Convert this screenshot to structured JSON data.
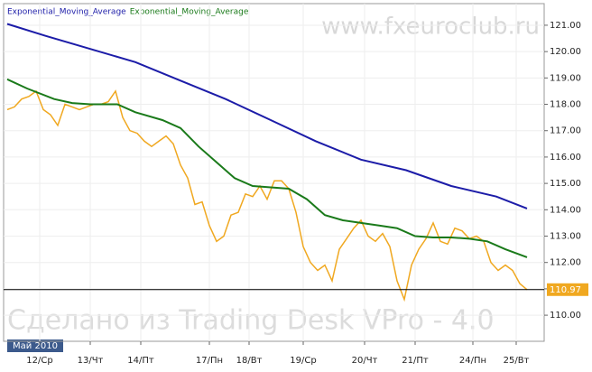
{
  "chart_data": {
    "type": "line",
    "watermark": "www.fxeuroclub.ru",
    "footer_watermark": "Сделано из Trading Desk VPro - 4.0",
    "period_label": "Май 2010",
    "last_price": 110.97,
    "xlim": [
      -1,
      148.75
    ],
    "xticks": [
      {
        "value": 9,
        "label": "12/Ср"
      },
      {
        "value": 23,
        "label": "13/Чт"
      },
      {
        "value": 37,
        "label": "14/Пт"
      },
      {
        "value": 56,
        "label": "17/Пн"
      },
      {
        "value": 67,
        "label": "18/Вт"
      },
      {
        "value": 82,
        "label": "19/Ср"
      },
      {
        "value": 99,
        "label": "20/Чт"
      },
      {
        "value": 113,
        "label": "21/Пт"
      },
      {
        "value": 129,
        "label": "24/Пн"
      },
      {
        "value": 141,
        "label": "25/Вт"
      }
    ],
    "ylim": [
      109.01,
      121.82
    ],
    "yticks": [
      {
        "value": 110,
        "label": "110.00"
      },
      {
        "value": 111,
        "label": "111.00"
      },
      {
        "value": 112,
        "label": "112.00"
      },
      {
        "value": 113,
        "label": "113.00"
      },
      {
        "value": 114,
        "label": "114.00"
      },
      {
        "value": 115,
        "label": "115.00"
      },
      {
        "value": 116,
        "label": "116.00"
      },
      {
        "value": 117,
        "label": "117.00"
      },
      {
        "value": 118,
        "label": "118.00"
      },
      {
        "value": 119,
        "label": "119.00"
      },
      {
        "value": 120,
        "label": "120.00"
      },
      {
        "value": 121,
        "label": "121.00"
      }
    ],
    "grid": true,
    "price_color": "#f0a820",
    "x": [
      0,
      2,
      4,
      6,
      8,
      10,
      12,
      14,
      16,
      18,
      20,
      22,
      24,
      26,
      28,
      30,
      32,
      34,
      36,
      38,
      40,
      42,
      44,
      46,
      48,
      50,
      52,
      54,
      56,
      58,
      60,
      62,
      64,
      66,
      68,
      70,
      72,
      74,
      76,
      78,
      80,
      82,
      84,
      86,
      88,
      90,
      92,
      94,
      96,
      98,
      100,
      102,
      104,
      106,
      108,
      110,
      112,
      114,
      116,
      118,
      120,
      122,
      124,
      126,
      128,
      130,
      132,
      134,
      136,
      138,
      140,
      142,
      144
    ],
    "values": [
      117.8,
      117.9,
      118.2,
      118.3,
      118.5,
      117.8,
      117.6,
      117.2,
      118.0,
      117.9,
      117.8,
      117.9,
      118.0,
      118.0,
      118.1,
      118.5,
      117.5,
      117.0,
      116.9,
      116.6,
      116.4,
      116.6,
      116.8,
      116.5,
      115.7,
      115.2,
      114.2,
      114.3,
      113.4,
      112.8,
      113.0,
      113.8,
      113.9,
      114.6,
      114.5,
      114.9,
      114.4,
      115.1,
      115.1,
      114.8,
      113.9,
      112.6,
      112.0,
      111.7,
      111.9,
      111.3,
      112.5,
      112.9,
      113.3,
      113.6,
      113.0,
      112.8,
      113.1,
      112.6,
      111.3,
      110.6,
      111.9,
      112.5,
      112.9,
      113.5,
      112.8,
      112.7,
      113.3,
      113.2,
      112.9,
      113.0,
      112.8,
      112.0,
      111.7,
      111.9,
      111.7,
      111.2,
      110.97
    ],
    "series": [
      {
        "name": "Exponential_Moving_Average",
        "color": "#1c1ca8",
        "x": [
          0,
          10.5,
          23,
          35.5,
          48,
          60.5,
          73,
          85.5,
          98,
          110.5,
          123,
          135.5,
          144
        ],
        "values": [
          121.05,
          120.6,
          120.1,
          119.6,
          118.9,
          118.2,
          117.4,
          116.6,
          115.9,
          115.5,
          114.9,
          114.5,
          114.05
        ]
      },
      {
        "name": "Exponential_Moving_Average",
        "color": "#1a7a1a",
        "x": [
          0,
          5.5,
          13,
          18,
          23,
          30.5,
          35.5,
          43,
          48,
          53,
          58,
          63,
          68,
          73,
          78,
          83,
          88,
          93,
          98,
          103,
          108,
          113,
          118,
          123,
          128,
          133,
          138,
          144
        ],
        "values": [
          118.95,
          118.6,
          118.2,
          118.05,
          118.0,
          118.0,
          117.7,
          117.4,
          117.1,
          116.4,
          115.8,
          115.2,
          114.9,
          114.85,
          114.8,
          114.4,
          113.8,
          113.6,
          113.5,
          113.4,
          113.3,
          113.0,
          112.95,
          112.95,
          112.9,
          112.8,
          112.5,
          112.2
        ]
      }
    ]
  }
}
